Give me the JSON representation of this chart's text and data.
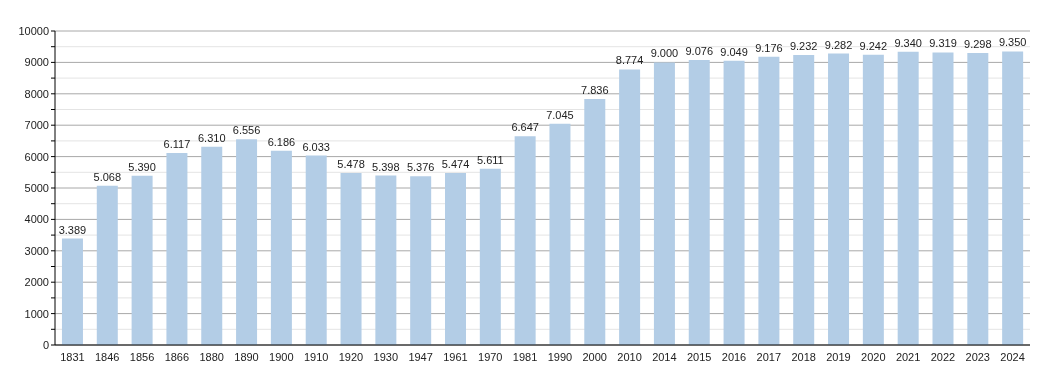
{
  "chart_data": {
    "type": "bar",
    "categories": [
      "1831",
      "1846",
      "1856",
      "1866",
      "1880",
      "1890",
      "1900",
      "1910",
      "1920",
      "1930",
      "1947",
      "1961",
      "1970",
      "1981",
      "1990",
      "2000",
      "2010",
      "2014",
      "2015",
      "2016",
      "2017",
      "2018",
      "2019",
      "2020",
      "2021",
      "2022",
      "2023",
      "2024"
    ],
    "values": [
      3389,
      5068,
      5390,
      6117,
      6310,
      6556,
      6186,
      6033,
      5478,
      5398,
      5376,
      5474,
      5611,
      6647,
      7045,
      7836,
      8774,
      9000,
      9076,
      9049,
      9176,
      9232,
      9282,
      9242,
      9340,
      9319,
      9298,
      9350
    ],
    "value_labels": [
      "3.389",
      "5.068",
      "5.390",
      "6.117",
      "6.310",
      "6.556",
      "6.186",
      "6.033",
      "5.478",
      "5.398",
      "5.376",
      "5.474",
      "5.611",
      "6.647",
      "7.045",
      "7.836",
      "8.774",
      "9.000",
      "9.076",
      "9.049",
      "9.176",
      "9.232",
      "9.282",
      "9.242",
      "9.340",
      "9.319",
      "9.298",
      "9.350"
    ],
    "color": "#b3cde6",
    "ylim": [
      0,
      10000
    ],
    "yticks": [
      0,
      {
        "value": 500,
        "label": null
      },
      1000,
      {
        "value": 1500,
        "label": null
      },
      2000,
      {
        "value": 2500,
        "label": null
      },
      3000,
      {
        "value": 3500,
        "label": null
      },
      4000,
      {
        "value": 4500,
        "label": null
      },
      5000,
      {
        "value": 5500,
        "label": null
      },
      6000,
      {
        "value": 6500,
        "label": null
      },
      7000,
      {
        "value": 7500,
        "label": null
      },
      8000,
      {
        "value": 8500,
        "label": null
      },
      9000,
      {
        "value": 9500,
        "label": null
      },
      10000
    ],
    "grid": "y"
  }
}
